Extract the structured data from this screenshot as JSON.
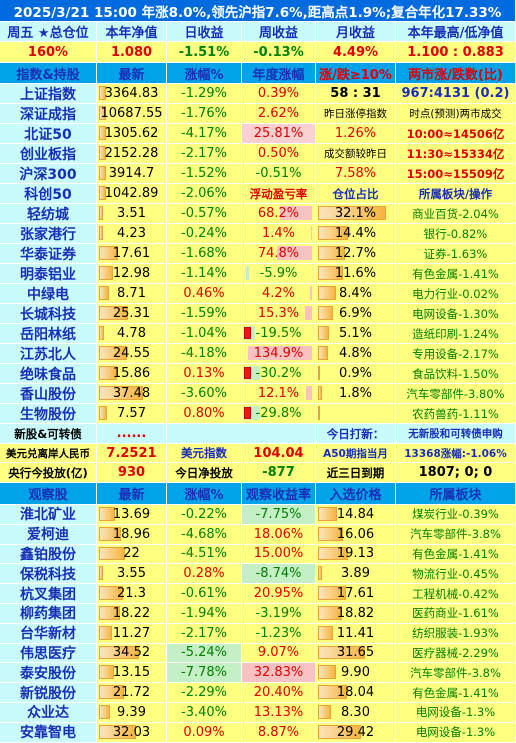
{
  "banner": "2025/3/21  15:00 年涨8.0%,领先沪指7.6%,距高点1.9%;复合年化17.33%",
  "summary": {
    "headers": [
      "周五 ★总仓位",
      "本年净值",
      "日收益",
      "周收益",
      "月收益",
      "本年最高/低净值"
    ],
    "values": [
      "160%",
      "1.080",
      "-1.51%",
      "-0.13%",
      "4.49%",
      "1.100 : 0.883"
    ]
  },
  "index_header": [
    "指数&持股",
    "最新",
    "涨幅%",
    "年度涨幅",
    "涨/跌≥10%",
    "两市涨/跌数(比)"
  ],
  "indices": [
    {
      "name": "上证指数",
      "last": "3364.83",
      "pct": "-1.29%",
      "year": "0.39%",
      "extra": "58 : 31",
      "info": "967:4131 (0.2)"
    },
    {
      "name": "深证成指",
      "last": "10687.55",
      "pct": "-1.76%",
      "year": "2.62%",
      "extra": "昨日涨停指数",
      "info": "时点(预测)两市成交"
    },
    {
      "name": "北证50",
      "last": "1305.62",
      "pct": "-4.17%",
      "year": "25.81%",
      "extra": "1.26%",
      "info": "10:00≈14506亿"
    },
    {
      "name": "创业板指",
      "last": "2152.28",
      "pct": "-2.17%",
      "year": "0.50%",
      "extra": "成交额较昨日",
      "info": "11:30≈15334亿"
    },
    {
      "name": "沪深300",
      "last": "3914.7",
      "pct": "-1.52%",
      "year": "-0.51%",
      "extra": "7.58%",
      "info": "15:00≈15509亿"
    },
    {
      "name": "科创50",
      "last": "1042.89",
      "pct": "-2.06%",
      "year": "浮动盈亏率",
      "extra": "仓位占比",
      "info": "所属板块/操作"
    }
  ],
  "holdings": [
    {
      "name": "轻纺城",
      "last": "3.51",
      "pct": "-0.57%",
      "pnl": "68.2%",
      "pos": "32.1%",
      "sector": "商业百货-2.04%",
      "bar": 0.06,
      "pnl_val": 68.2,
      "pos_val": 32.1
    },
    {
      "name": "张家港行",
      "last": "4.23",
      "pct": "-0.24%",
      "pnl": "1.4%",
      "pos": "14.4%",
      "sector": "银行-0.82%",
      "bar": 0.07,
      "pnl_val": 1.4,
      "pos_val": 14.4
    },
    {
      "name": "华泰证券",
      "last": "17.61",
      "pct": "-1.68%",
      "pnl": "74.8%",
      "pos": "12.7%",
      "sector": "证券-1.63%",
      "bar": 0.3,
      "pnl_val": 74.8,
      "pos_val": 12.7
    },
    {
      "name": "明泰铝业",
      "last": "12.98",
      "pct": "-1.14%",
      "pnl": "-5.9%",
      "pos": "11.6%",
      "sector": "有色金属-1.41%",
      "bar": 0.22,
      "pnl_val": -5.9,
      "pos_val": 11.6
    },
    {
      "name": "中绿电",
      "last": "8.71",
      "pct": "0.46%",
      "pnl": "4.2%",
      "pos": "8.4%",
      "sector": "电力行业-0.02%",
      "bar": 0.15,
      "pnl_val": 4.2,
      "pos_val": 8.4
    },
    {
      "name": "长城科技",
      "last": "25.31",
      "pct": "-1.59%",
      "pnl": "15.3%",
      "pos": "6.9%",
      "sector": "电网设备-1.30%",
      "bar": 0.45,
      "pnl_val": 15.3,
      "pos_val": 6.9
    },
    {
      "name": "岳阳林纸",
      "last": "4.78",
      "pct": "-1.04%",
      "pnl": "-19.5%",
      "pos": "5.1%",
      "sector": "造纸印刷-1.24%",
      "bar": 0.08,
      "pnl_val": -19.5,
      "pos_val": 5.1
    },
    {
      "name": "江苏北人",
      "last": "24.55",
      "pct": "-4.18%",
      "pnl": "134.9%",
      "pos": "4.8%",
      "sector": "专用设备-2.17%",
      "bar": 0.43,
      "pnl_val": 134.9,
      "pos_val": 4.8
    },
    {
      "name": "绝味食品",
      "last": "15.86",
      "pct": "0.13%",
      "pnl": "-30.2%",
      "pos": "0.9%",
      "sector": "食品饮料-1.50%",
      "bar": 0.28,
      "pnl_val": -30.2,
      "pos_val": 0.9
    },
    {
      "name": "香山股份",
      "last": "37.48",
      "pct": "-3.60%",
      "pnl": "12.1%",
      "pos": "1.8%",
      "sector": "汽车零部件-3.80%",
      "bar": 0.68,
      "pnl_val": 12.1,
      "pos_val": 1.8
    },
    {
      "name": "生物股份",
      "last": "7.57",
      "pct": "0.80%",
      "pnl": "-29.8%",
      "pos": "",
      "sector": "农药兽药-1.11%",
      "bar": 0.12,
      "pnl_val": -29.8,
      "pos_val": 0
    }
  ],
  "misc": {
    "new_label": "新股&可转债",
    "new_value": "......",
    "today_label": "今日打新：",
    "today_value": "无新股和可转债申购",
    "usd_label": "美元兑离岸人民币",
    "usd_value": "7.2521",
    "dxy_label": "美元指数",
    "dxy_value": "104.04",
    "a50_label": "A50期指当月",
    "a50_value": "13368涨幅:-1.06%",
    "cb_label": "央行今投放(亿)",
    "cb_value": "930",
    "net_label": "今日净投放",
    "net_value": "-877",
    "due_label": "近三日到期",
    "due_value": "1807; 0; 0"
  },
  "watch_header": [
    "观察股",
    "最新",
    "涨幅%",
    "观察收益率",
    "入选价格",
    "所属板块"
  ],
  "watch": [
    {
      "name": "淮北矿业",
      "last": "13.69",
      "pct": "-0.22%",
      "ret": "-7.75%",
      "price": "14.84",
      "sector": "煤炭行业-0.39%",
      "bar": 0.25,
      "ret_val": -7.75
    },
    {
      "name": "爱柯迪",
      "last": "18.96",
      "pct": "-4.68%",
      "ret": "18.06%",
      "price": "16.06",
      "sector": "汽车零部件-3.8%",
      "bar": 0.34,
      "ret_val": 18.06
    },
    {
      "name": "鑫铂股份",
      "last": "22",
      "pct": "-4.51%",
      "ret": "15.00%",
      "price": "19.13",
      "sector": "有色金属-1.41%",
      "bar": 0.4,
      "ret_val": 15.0
    },
    {
      "name": "保税科技",
      "last": "3.55",
      "pct": "0.28%",
      "ret": "-8.74%",
      "price": "3.89",
      "sector": "物流行业-0.45%",
      "bar": 0.06,
      "ret_val": -8.74
    },
    {
      "name": "杭叉集团",
      "last": "21.3",
      "pct": "-0.61%",
      "ret": "20.95%",
      "price": "17.61",
      "sector": "工程机械-0.42%",
      "bar": 0.38,
      "ret_val": 20.95
    },
    {
      "name": "柳药集团",
      "last": "18.22",
      "pct": "-1.94%",
      "ret": "-3.19%",
      "price": "18.82",
      "sector": "医药商业-1.61%",
      "bar": 0.33,
      "ret_val": -3.19
    },
    {
      "name": "台华新材",
      "last": "11.27",
      "pct": "-2.17%",
      "ret": "-1.23%",
      "price": "11.41",
      "sector": "纺织服装-1.93%",
      "bar": 0.2,
      "ret_val": -1.23
    },
    {
      "name": "伟思医疗",
      "last": "34.52",
      "pct": "-5.24%",
      "ret": "9.07%",
      "price": "31.65",
      "sector": "医疗器械-2.29%",
      "bar": 0.63,
      "ret_val": 9.07
    },
    {
      "name": "泰安股份",
      "last": "13.15",
      "pct": "-7.78%",
      "ret": "32.83%",
      "price": "9.90",
      "sector": "汽车零部件-3.8%",
      "bar": 0.24,
      "ret_val": 32.83
    },
    {
      "name": "新锐股份",
      "last": "21.72",
      "pct": "-2.29%",
      "ret": "20.40%",
      "price": "18.04",
      "sector": "有色金属-1.41%",
      "bar": 0.39,
      "ret_val": 20.4
    },
    {
      "name": "众业达",
      "last": "9.39",
      "pct": "-3.40%",
      "ret": "13.13%",
      "price": "8.30",
      "sector": "电网设备-1.3%",
      "bar": 0.17,
      "ret_val": 13.13
    },
    {
      "name": "安靠智电",
      "last": "32.03",
      "pct": "0.09%",
      "ret": "8.87%",
      "price": "29.42",
      "sector": "电网设备-1.3%",
      "bar": 0.58,
      "ret_val": 8.87
    }
  ]
}
